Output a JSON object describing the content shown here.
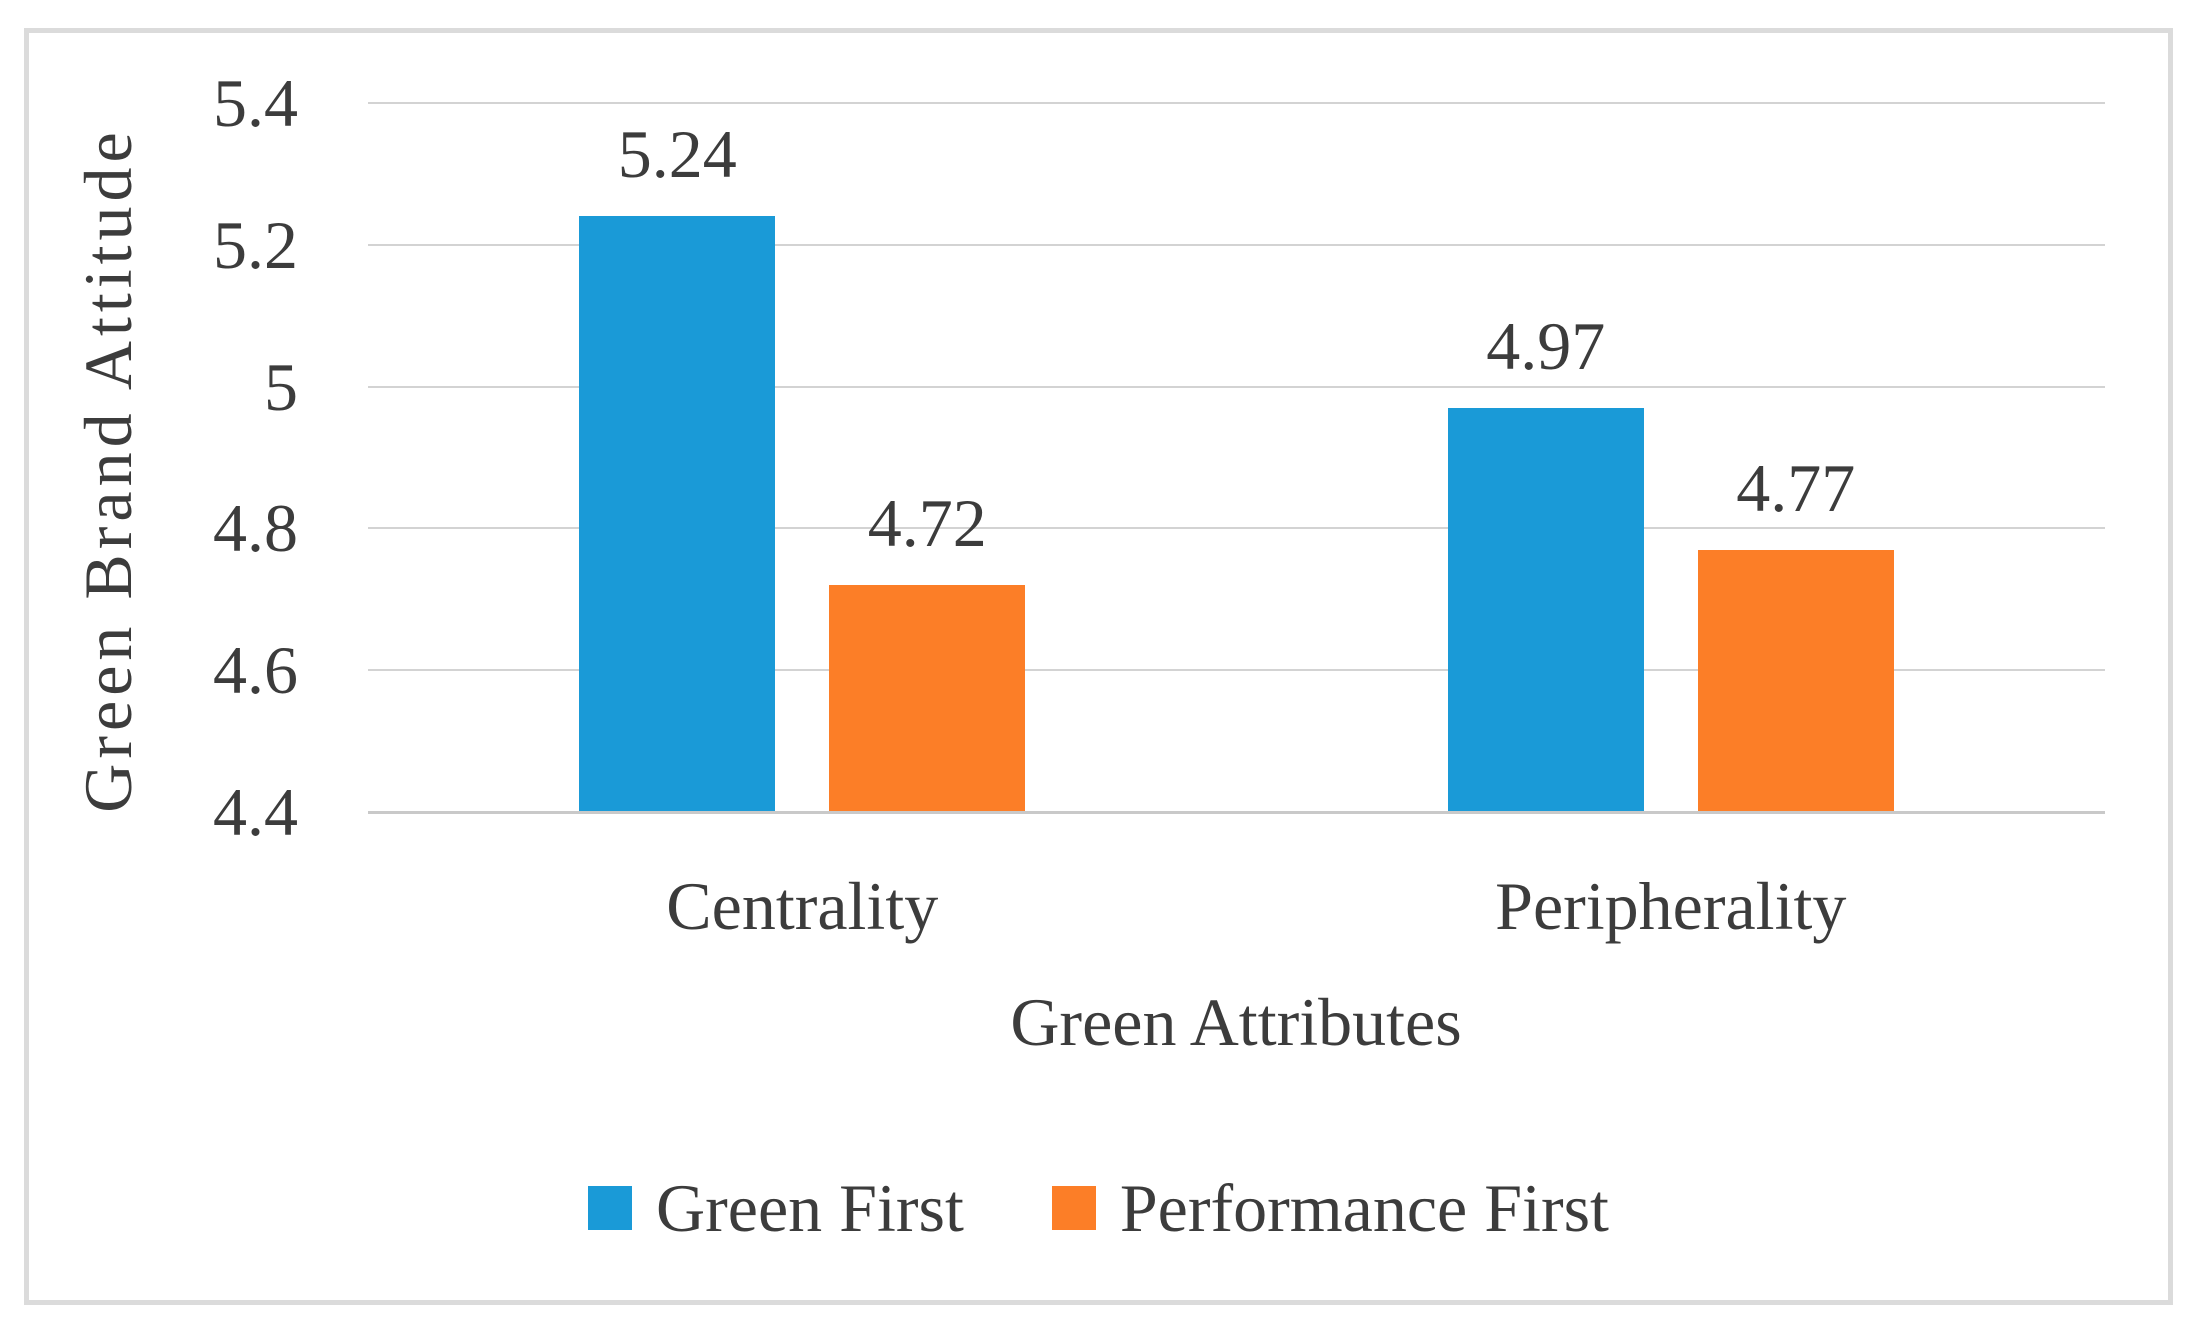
{
  "chart_data": {
    "type": "bar",
    "title": "",
    "xlabel": "Green Attributes",
    "ylabel": "Green Brand Attitude",
    "categories": [
      "Centrality",
      "Peripherality"
    ],
    "series": [
      {
        "name": "Green First",
        "color": "#1A9AD7",
        "values": [
          5.24,
          4.97
        ],
        "labels": [
          "5.24",
          "4.97"
        ]
      },
      {
        "name": "Performance First",
        "color": "#FC7E27",
        "values": [
          4.72,
          4.77
        ],
        "labels": [
          "4.72",
          "4.77"
        ]
      }
    ],
    "ylim": [
      4.4,
      5.4
    ],
    "yticks": [
      {
        "value": 4.4,
        "label": "4.4"
      },
      {
        "value": 4.6,
        "label": "4.6"
      },
      {
        "value": 4.8,
        "label": "4.8"
      },
      {
        "value": 5.0,
        "label": "5"
      },
      {
        "value": 5.2,
        "label": "5.2"
      },
      {
        "value": 5.4,
        "label": "5.4"
      }
    ],
    "grid": true,
    "legend_position": "bottom",
    "colors": {
      "background": "#FFFFFF",
      "text": "#3C3C3C",
      "gridline": "#D3D3D3",
      "axis_line": "#C9C9C9",
      "frame_border": "#DBDBDB"
    }
  }
}
